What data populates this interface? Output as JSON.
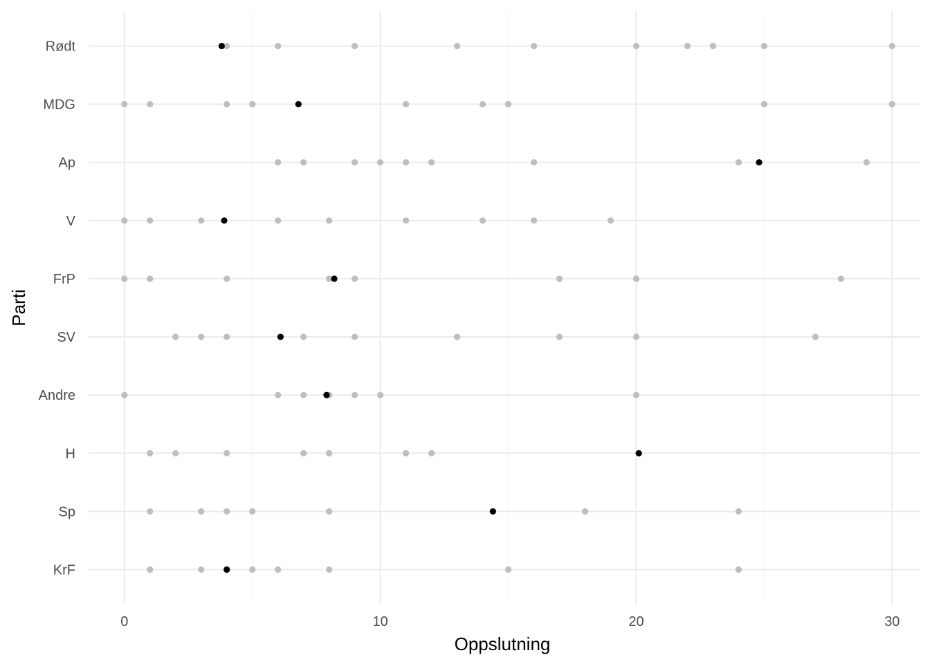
{
  "chart_data": {
    "type": "scatter",
    "title": "",
    "xlabel": "Oppslutning",
    "ylabel": "Parti",
    "xlim": [
      -1.4,
      31.1
    ],
    "xticks": [
      0,
      10,
      20,
      30
    ],
    "grid": true,
    "legend": "none",
    "categories": [
      "Rødt",
      "MDG",
      "Ap",
      "V",
      "FrP",
      "SV",
      "Andre",
      "H",
      "Sp",
      "KrF"
    ],
    "colors": {
      "individual": "#bebebe",
      "average": "#000000",
      "grid_major": "#ebebeb",
      "grid_minor": "#f5f5f5"
    },
    "series": [
      {
        "values": [
          {
            "party": "Rødt",
            "x": [
              4,
              6,
              9,
              13,
              16,
              20,
              22,
              23,
              25,
              30
            ]
          },
          {
            "party": "MDG",
            "x": [
              0,
              1,
              4,
              5,
              11,
              14,
              15,
              25,
              30
            ]
          },
          {
            "party": "Ap",
            "x": [
              6,
              7,
              9,
              10,
              11,
              12,
              16,
              24,
              29
            ]
          },
          {
            "party": "V",
            "x": [
              0,
              1,
              3,
              6,
              8,
              11,
              14,
              16,
              19
            ]
          },
          {
            "party": "FrP",
            "x": [
              0,
              1,
              4,
              8,
              9,
              17,
              20,
              28
            ]
          },
          {
            "party": "SV",
            "x": [
              2,
              3,
              4,
              7,
              9,
              13,
              17,
              20,
              27
            ]
          },
          {
            "party": "Andre",
            "x": [
              0,
              6,
              7,
              8,
              9,
              10,
              20
            ]
          },
          {
            "party": "H",
            "x": [
              1,
              2,
              4,
              7,
              8,
              11,
              12
            ]
          },
          {
            "party": "Sp",
            "x": [
              1,
              3,
              4,
              5,
              8,
              18,
              24
            ]
          },
          {
            "party": "KrF",
            "x": [
              1,
              3,
              4,
              5,
              6,
              8,
              15,
              24
            ]
          }
        ]
      },
      {
        "values": [
          {
            "party": "Rødt",
            "x": 3.8
          },
          {
            "party": "MDG",
            "x": 6.8
          },
          {
            "party": "Ap",
            "x": 24.8
          },
          {
            "party": "V",
            "x": 3.9
          },
          {
            "party": "FrP",
            "x": 8.2
          },
          {
            "party": "SV",
            "x": 6.1
          },
          {
            "party": "Andre",
            "x": 7.9
          },
          {
            "party": "H",
            "x": 20.1
          },
          {
            "party": "Sp",
            "x": 14.4
          },
          {
            "party": "KrF",
            "x": 4.0
          }
        ]
      }
    ]
  }
}
